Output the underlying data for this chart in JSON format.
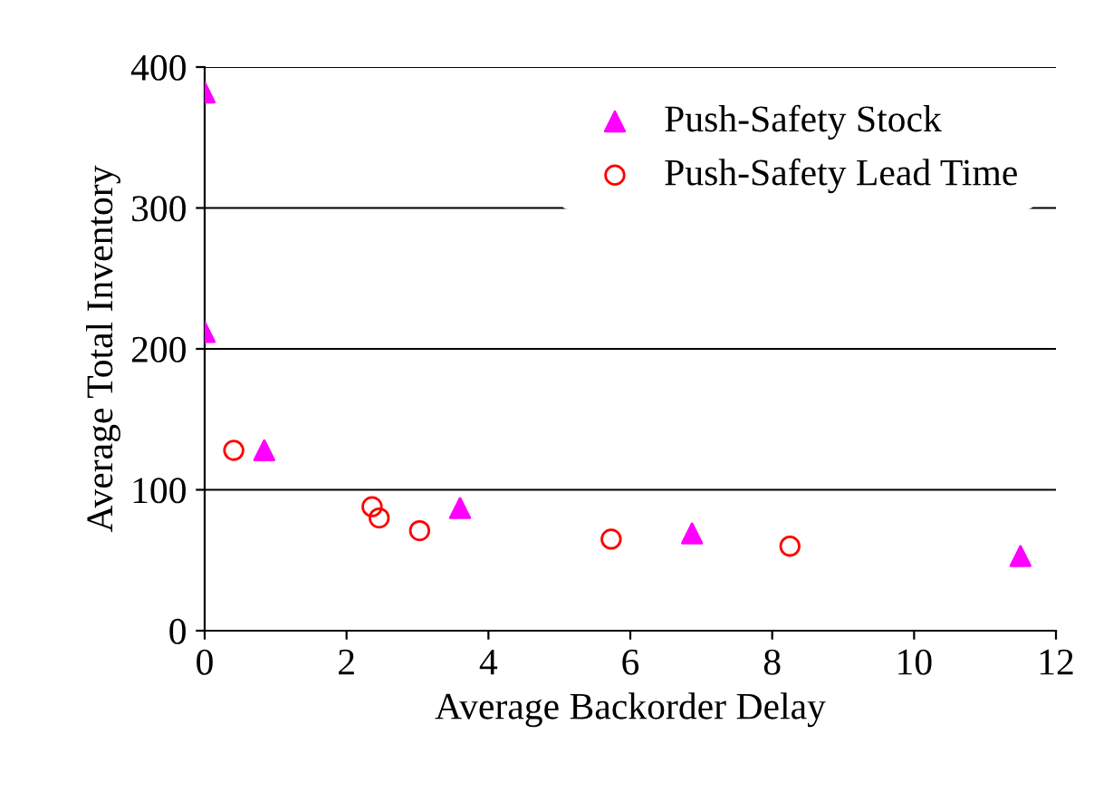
{
  "chart_data": {
    "type": "scatter",
    "xlabel": "Average Backorder Delay",
    "ylabel": "Average Total Inventory",
    "xlim": [
      0,
      12
    ],
    "xticks": [
      0,
      2,
      4,
      6,
      8,
      10,
      12
    ],
    "ylim": [
      0,
      400
    ],
    "yticks": [
      0,
      100,
      200,
      300,
      400
    ],
    "grid": "y",
    "legend": "top right",
    "series": [
      {
        "name": "Push-Safety Stock",
        "color": "#ff00ff",
        "marker": "triangle",
        "x": [
          0,
          0,
          0.84,
          3.6,
          6.87,
          11.5
        ],
        "values": [
          382,
          212,
          128,
          87,
          69,
          53
        ]
      },
      {
        "name": "Push-Safety Lead Time",
        "color": "#ff0000",
        "marker": "circle",
        "x": [
          0.41,
          2.36,
          2.46,
          3.03,
          5.73,
          8.25
        ],
        "values": [
          128,
          88,
          80,
          71,
          65,
          60
        ]
      }
    ]
  }
}
